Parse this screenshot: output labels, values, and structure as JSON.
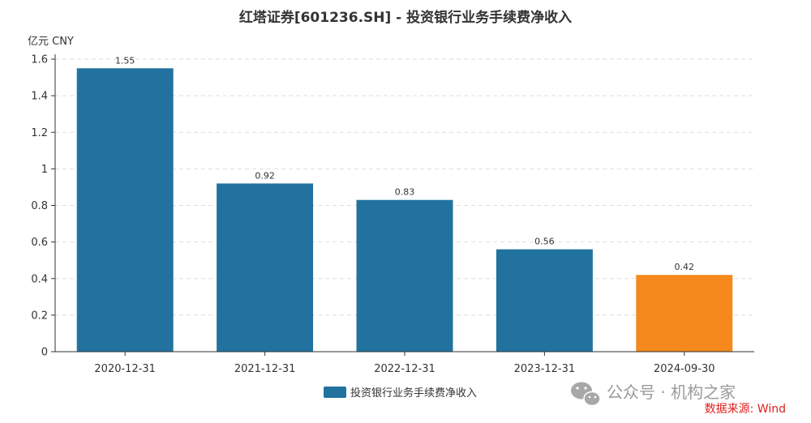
{
  "chart_data": {
    "type": "bar",
    "title": "红塔证券[601236.SH] - 投资银行业务手续费净收入",
    "ylabel": "亿元  CNY",
    "xlabel": "",
    "categories": [
      "2020-12-31",
      "2021-12-31",
      "2022-12-31",
      "2023-12-31",
      "2024-09-30"
    ],
    "series": [
      {
        "name": "投资银行业务手续费净收入",
        "values": [
          1.55,
          0.92,
          0.83,
          0.56,
          0.42
        ]
      }
    ],
    "data_labels": [
      "1.55",
      "0.92",
      "0.83",
      "0.56",
      "0.42"
    ],
    "ylim": [
      0,
      1.6
    ],
    "yticks": [
      0,
      0.2,
      0.4,
      0.6,
      0.8,
      1,
      1.2,
      1.4,
      1.6
    ],
    "ytick_labels": [
      "0",
      "0.2",
      "0.4",
      "0.6",
      "0.8",
      "1",
      "1.2",
      "1.4",
      "1.6"
    ],
    "grid": true,
    "legend_position": "bottom-center",
    "colors": {
      "bar": "#21729f",
      "highlight_bar": "#f5891d",
      "grid": "#dddddd",
      "axis": "#333333"
    },
    "highlight_index": 4
  },
  "watermark": "公众号 · 机构之家",
  "source": "数据来源: Wind"
}
